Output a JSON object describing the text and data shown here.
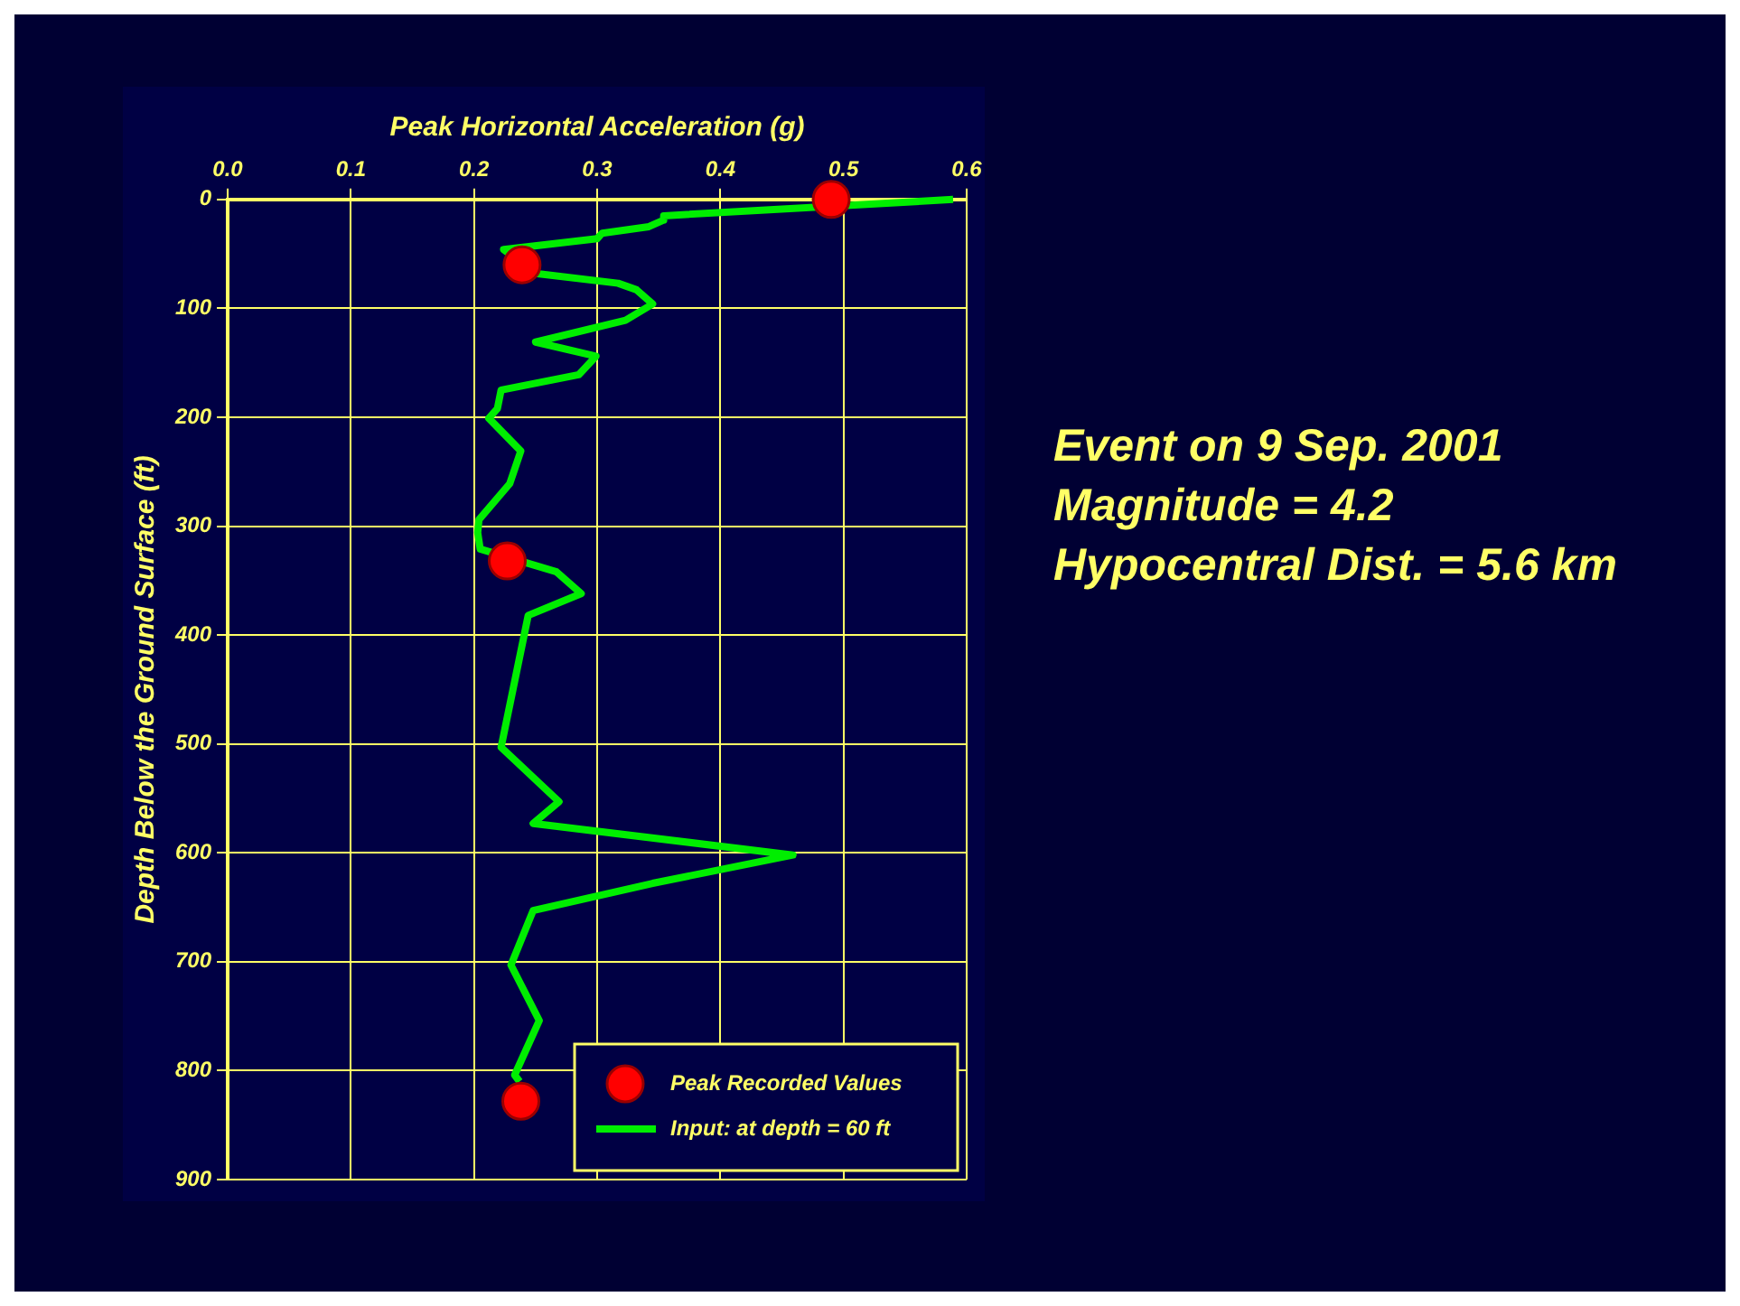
{
  "chart_data": {
    "type": "line",
    "xlabel": "Peak Horizontal Acceleration (g)",
    "ylabel": "Depth Below the Ground Surface (ft)",
    "xlim": [
      0,
      0.6
    ],
    "xticks": [
      {
        "value": 0,
        "label": "0.0"
      },
      0.1,
      0.2,
      0.3,
      0.4,
      0.5,
      0.6
    ],
    "ylim": [
      900,
      0
    ],
    "yticks": [
      0,
      100,
      200,
      300,
      400,
      500,
      600,
      700,
      800,
      900
    ],
    "grid": true,
    "legend": "bottom right",
    "series": [
      {
        "name": "Peak Recorded Values",
        "type": "scatter",
        "marker": "circle",
        "color": "#ff0000",
        "x": [
          0.49,
          0.239,
          0.227,
          0.238
        ],
        "values": [
          0,
          60,
          332,
          828
        ]
      },
      {
        "name": "Input: at depth = 60 ft",
        "marker": "none",
        "color": "#00ee00",
        "x": [
          0.589,
          0.354,
          0.354,
          0.342,
          0.304,
          0.3,
          0.224,
          0.25,
          0.317,
          0.332,
          0.345,
          0.323,
          0.25,
          0.299,
          0.285,
          0.222,
          0.219,
          0.212,
          0.238,
          0.229,
          0.204,
          0.203,
          0.205,
          0.267,
          0.287,
          0.244,
          0.222,
          0.269,
          0.248,
          0.459,
          0.345,
          0.248,
          0.23,
          0.253,
          0.233,
          0.237
        ],
        "values": [
          0,
          15,
          19,
          25,
          31,
          36,
          46,
          68,
          77,
          83,
          96,
          111,
          131,
          144,
          161,
          175,
          192,
          201,
          231,
          261,
          294,
          306,
          321,
          342,
          362,
          382,
          503,
          553,
          573,
          602,
          628,
          653,
          703,
          754,
          804,
          810
        ]
      }
    ],
    "annotations": [
      "Event on 9 Sep. 2001",
      "Magnitude = 4.2",
      "Hypocentral Dist. = 5.6 km"
    ]
  }
}
